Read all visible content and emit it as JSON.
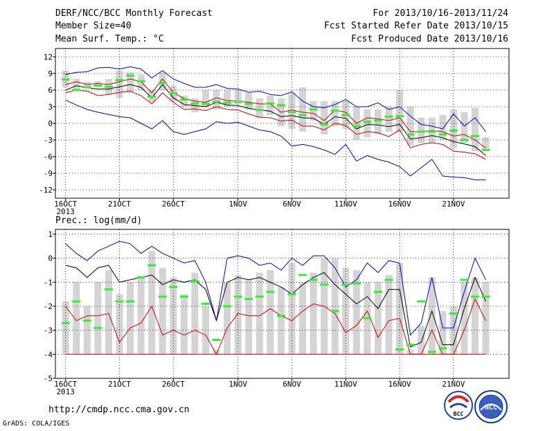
{
  "header": {
    "title": "DERF/NCC/BCC Monthly Forecast",
    "member_size": "Member Size=40",
    "variable": "Mean Surf. Temp.: °C",
    "period": "For 2013/10/16-2013/11/24",
    "fcst_started": "Fcst Started Refer Date 2013/10/15",
    "fcst_produced": "Fcst Produced Date 2013/10/16"
  },
  "precip_label": "Prec.: log(mm/d)",
  "footer": {
    "url": "http://cmdp.ncc.cma.gov.cn",
    "grads": "GrADS: COLA/IGES",
    "logo_bcc": "BCC",
    "logo_ncc": "NCC"
  },
  "x_ticks": [
    "16OCT",
    "21OCT",
    "26OCT",
    "1NOV",
    "6NOV",
    "11NOV",
    "16NOV",
    "21NOV"
  ],
  "x_year": "2013",
  "colors": {
    "bar": "#d4d4d4",
    "green": "#33ee33",
    "blue": "#0000cc",
    "red": "#cc0000",
    "black": "#000000"
  },
  "chart_data": [
    {
      "type": "line",
      "title": "Mean Surf. Temp.: °C",
      "ylim": [
        -13.5,
        13.5
      ],
      "yticks": [
        12,
        9,
        6,
        3,
        0,
        -3,
        -6,
        -9,
        -12
      ],
      "x": [
        "2013-10-16",
        "2013-10-17",
        "2013-10-18",
        "2013-10-19",
        "2013-10-20",
        "2013-10-21",
        "2013-10-22",
        "2013-10-23",
        "2013-10-24",
        "2013-10-25",
        "2013-10-26",
        "2013-10-27",
        "2013-10-28",
        "2013-10-29",
        "2013-10-30",
        "2013-10-31",
        "2013-11-01",
        "2013-11-02",
        "2013-11-03",
        "2013-11-04",
        "2013-11-05",
        "2013-11-06",
        "2013-11-07",
        "2013-11-08",
        "2013-11-09",
        "2013-11-10",
        "2013-11-11",
        "2013-11-12",
        "2013-11-13",
        "2013-11-14",
        "2013-11-15",
        "2013-11-16",
        "2013-11-17",
        "2013-11-18",
        "2013-11-19",
        "2013-11-20",
        "2013-11-21",
        "2013-11-22",
        "2013-11-23",
        "2013-11-24"
      ],
      "bars": {
        "low": [
          6.5,
          6.0,
          6.5,
          6.8,
          5.2,
          4.6,
          5.5,
          6.0,
          3.8,
          6.0,
          4.0,
          3.0,
          2.0,
          3.0,
          2.5,
          3.0,
          3.5,
          2.5,
          1.0,
          1.5,
          -0.5,
          -1.0,
          -1.5,
          0.5,
          -2.0,
          -0.5,
          -1.0,
          -3.0,
          -2.5,
          -2.0,
          -1.5,
          -1.5,
          -4.0,
          -3.5,
          -3.5,
          -3.0,
          -4.5,
          -3.5,
          -5.0,
          -4.5
        ],
        "high": [
          9.5,
          8.0,
          7.5,
          7.6,
          8.0,
          9.5,
          9.2,
          8.8,
          6.0,
          9.2,
          6.8,
          5.0,
          4.5,
          6.0,
          6.0,
          6.0,
          6.0,
          5.5,
          4.5,
          5.0,
          4.5,
          5.5,
          6.5,
          4.0,
          4.0,
          4.0,
          4.0,
          3.0,
          2.5,
          2.5,
          3.0,
          6.0,
          3.0,
          1.0,
          1.0,
          1.5,
          2.5,
          2.0,
          2.8,
          -2.5
        ]
      },
      "series": [
        {
          "name": "ens_max",
          "color": "#0000cc",
          "values": [
            8.8,
            9.2,
            9.3,
            10.0,
            10.1,
            9.8,
            10.2,
            9.8,
            8.2,
            9.5,
            8.0,
            7.2,
            6.5,
            6.5,
            7.0,
            6.3,
            6.2,
            5.6,
            5.8,
            5.2,
            5.0,
            5.7,
            4.0,
            3.0,
            2.8,
            3.4,
            4.3,
            3.0,
            3.0,
            3.7,
            2.5,
            3.0,
            1.3,
            -0.2,
            -0.5,
            -1.0,
            1.7,
            -0.5,
            1.0,
            -1.5
          ]
        },
        {
          "name": "upper",
          "color": "#cc0000",
          "values": [
            7.0,
            7.5,
            7.0,
            7.2,
            7.0,
            7.5,
            8.0,
            7.5,
            5.5,
            8.0,
            5.5,
            4.5,
            4.0,
            3.8,
            4.6,
            4.1,
            4.0,
            3.8,
            3.5,
            3.5,
            2.0,
            2.4,
            2.0,
            1.8,
            0.5,
            2.4,
            2.0,
            0.0,
            1.0,
            0.8,
            0.5,
            1.0,
            -1.5,
            -1.5,
            -1.3,
            -1.5,
            -2.3,
            -2.0,
            -3.0,
            -4.5
          ]
        },
        {
          "name": "median",
          "color": "#000000",
          "values": [
            6.0,
            6.8,
            6.4,
            6.2,
            6.2,
            6.6,
            7.0,
            6.5,
            4.6,
            7.0,
            4.6,
            3.4,
            3.2,
            3.0,
            3.8,
            3.3,
            3.2,
            2.7,
            2.4,
            2.2,
            1.2,
            1.4,
            1.0,
            0.9,
            -0.2,
            1.2,
            0.9,
            -1.0,
            -0.2,
            -0.3,
            -0.6,
            -0.2,
            -2.8,
            -2.6,
            -2.2,
            -2.6,
            -3.3,
            -3.7,
            -4.2,
            -5.8
          ]
        },
        {
          "name": "lower",
          "color": "#cc0000",
          "values": [
            5.5,
            6.0,
            5.8,
            5.0,
            5.2,
            5.6,
            5.8,
            5.0,
            3.5,
            5.5,
            3.8,
            2.5,
            2.6,
            2.3,
            3.0,
            2.5,
            2.4,
            1.7,
            1.1,
            1.0,
            0.4,
            0.6,
            -0.5,
            -0.5,
            -1.2,
            0.0,
            -0.4,
            -2.0,
            -1.5,
            -1.7,
            -2.4,
            -1.2,
            -4.4,
            -3.8,
            -3.5,
            -3.8,
            -5.0,
            -5.2,
            -5.5,
            -6.5
          ]
        },
        {
          "name": "ens_min",
          "color": "#0000cc",
          "values": [
            4.2,
            3.3,
            2.5,
            2.0,
            1.6,
            1.2,
            1.0,
            0.0,
            -1.0,
            0.5,
            -1.5,
            -2.0,
            -1.5,
            -1.0,
            0.3,
            0.0,
            0.2,
            -0.5,
            -1.2,
            -1.5,
            -2.3,
            -4.1,
            -3.8,
            -4.2,
            -4.8,
            -5.6,
            -3.8,
            -6.8,
            -5.8,
            -6.5,
            -7.0,
            -7.8,
            -9.5,
            -8.0,
            -6.5,
            -9.5,
            -9.7,
            -9.8,
            -10.2,
            -10.2
          ]
        }
      ],
      "markers": {
        "name": "green",
        "values": [
          7.9,
          6.0,
          6.5,
          6.8,
          6.6,
          7.8,
          8.6,
          7.6,
          4.8,
          7.3,
          5.4,
          4.3,
          3.6,
          3.5,
          3.9,
          3.7,
          3.9,
          3.5,
          2.4,
          3.6,
          3.3,
          2.0,
          1.5,
          2.5,
          -0.2,
          2.3,
          1.5,
          -0.5,
          0.3,
          0.5,
          1.2,
          1.3,
          -2.0,
          -1.5,
          -1.5,
          -2.0,
          -1.3,
          -3.0,
          -2.3,
          -4.8
        ]
      }
    },
    {
      "type": "line",
      "title": "Prec.: log(mm/d)",
      "ylim": [
        -5,
        1.2
      ],
      "yticks": [
        1,
        0,
        -1,
        -2,
        -3,
        -4,
        -5
      ],
      "x": [
        "2013-10-16",
        "2013-10-17",
        "2013-10-18",
        "2013-10-19",
        "2013-10-20",
        "2013-10-21",
        "2013-10-22",
        "2013-10-23",
        "2013-10-24",
        "2013-10-25",
        "2013-10-26",
        "2013-10-27",
        "2013-10-28",
        "2013-10-29",
        "2013-10-30",
        "2013-10-31",
        "2013-11-01",
        "2013-11-02",
        "2013-11-03",
        "2013-11-04",
        "2013-11-05",
        "2013-11-06",
        "2013-11-07",
        "2013-11-08",
        "2013-11-09",
        "2013-11-10",
        "2013-11-11",
        "2013-11-12",
        "2013-11-13",
        "2013-11-14",
        "2013-11-15",
        "2013-11-16",
        "2013-11-17",
        "2013-11-18",
        "2013-11-19",
        "2013-11-20",
        "2013-11-21",
        "2013-11-22",
        "2013-11-23",
        "2013-11-24"
      ],
      "bars": {
        "low": [
          -4.0,
          -4.0,
          -4.0,
          -4.0,
          -4.0,
          -4.0,
          -4.0,
          -4.0,
          -4.0,
          -4.0,
          -4.0,
          -4.0,
          -4.0,
          -4.0,
          -4.0,
          -4.0,
          -4.0,
          -4.0,
          -4.0,
          -4.0,
          -4.0,
          -4.0,
          -4.0,
          -4.0,
          -4.0,
          -4.0,
          -4.0,
          -4.0,
          -4.0,
          -4.0,
          -4.0,
          -4.0,
          -4.0,
          -4.0,
          -4.0,
          -4.0,
          -4.0,
          -4.0,
          -4.0,
          -4.0
        ],
        "high": [
          -1.8,
          -1.0,
          -2.0,
          -1.0,
          -0.5,
          -1.5,
          -1.0,
          -0.8,
          0.3,
          -0.4,
          -0.8,
          -1.5,
          -0.6,
          -2.0,
          -3.8,
          -1.0,
          -0.7,
          -0.9,
          -0.6,
          -0.5,
          -1.2,
          -0.2,
          -1.0,
          -0.6,
          0.0,
          0.0,
          -0.4,
          -0.5,
          -1.0,
          -1.0,
          -0.7,
          -0.2,
          -3.8,
          -2.8,
          -0.8,
          -2.2,
          -2.0,
          -1.0,
          -0.8,
          -1.0
        ]
      },
      "series": [
        {
          "name": "ens_max",
          "color": "#0000cc",
          "values": [
            0.6,
            0.2,
            -0.1,
            0.3,
            0.5,
            0.7,
            0.6,
            0.2,
            0.5,
            0.2,
            0.0,
            -0.2,
            -0.1,
            -1.0,
            -2.6,
            0.0,
            0.1,
            0.0,
            -0.3,
            -0.2,
            -0.5,
            0.0,
            -0.3,
            0.1,
            0.1,
            -0.4,
            -1.2,
            -0.9,
            -0.2,
            -0.6,
            -0.1,
            -0.2,
            -3.2,
            -2.7,
            -0.8,
            -2.9,
            -2.9,
            -1.4,
            0.0,
            -0.9
          ]
        },
        {
          "name": "median",
          "color": "#000000",
          "values": [
            -0.3,
            -0.4,
            -0.8,
            -0.4,
            -0.3,
            -1.0,
            -0.9,
            -0.8,
            -0.7,
            -1.1,
            -0.9,
            -1.0,
            -0.9,
            -1.3,
            -2.6,
            -1.0,
            -0.8,
            -0.9,
            -0.8,
            -1.0,
            -1.2,
            -1.5,
            -1.1,
            -0.8,
            -0.6,
            -1.1,
            -1.5,
            -1.9,
            -1.6,
            -2.1,
            -1.3,
            -1.3,
            -3.7,
            -3.5,
            -2.2,
            -3.6,
            -3.6,
            -2.1,
            -0.8,
            -1.8
          ]
        },
        {
          "name": "precip_low",
          "color": "#cc0000",
          "values": [
            -2.0,
            -2.6,
            -2.4,
            -2.4,
            -2.3,
            -3.5,
            -2.9,
            -2.7,
            -2.0,
            -3.2,
            -3.0,
            -3.2,
            -3.0,
            -3.2,
            -4.0,
            -2.9,
            -2.3,
            -2.4,
            -2.4,
            -2.1,
            -2.4,
            -2.6,
            -2.2,
            -1.9,
            -2.0,
            -2.3,
            -3.1,
            -2.8,
            -2.2,
            -3.3,
            -2.6,
            -2.5,
            -4.0,
            -4.0,
            -3.0,
            -4.0,
            -4.0,
            -3.0,
            -1.7,
            -2.6
          ]
        },
        {
          "name": "floor",
          "color": "#cc0000",
          "values": [
            -4,
            -4,
            -4,
            -4,
            -4,
            -4,
            -4,
            -4,
            -4,
            -4,
            -4,
            -4,
            -4,
            -4,
            -4,
            -4,
            -4,
            -4,
            -4,
            -4,
            -4,
            -4,
            -4,
            -4,
            -4,
            -4,
            -4,
            -4,
            -4,
            -4,
            -4,
            -4,
            -4,
            -4,
            -4,
            -4,
            -4,
            -4,
            -4,
            -4
          ]
        }
      ],
      "markers": {
        "name": "green",
        "values": [
          -2.7,
          -1.8,
          -2.6,
          -2.9,
          -1.3,
          -1.8,
          -1.8,
          -0.8,
          -0.3,
          -1.6,
          -1.2,
          -1.6,
          -0.95,
          -1.9,
          -3.4,
          -2.0,
          -1.6,
          -1.7,
          -1.6,
          -1.4,
          -2.4,
          -1.5,
          -0.7,
          -0.9,
          -1.1,
          -2.2,
          -1.1,
          -1.05,
          -2.5,
          -1.4,
          -0.9,
          -3.8,
          -3.6,
          -1.8,
          -3.9,
          -3.75,
          -2.3,
          -0.9,
          -1.6,
          -1.6
        ]
      }
    }
  ]
}
